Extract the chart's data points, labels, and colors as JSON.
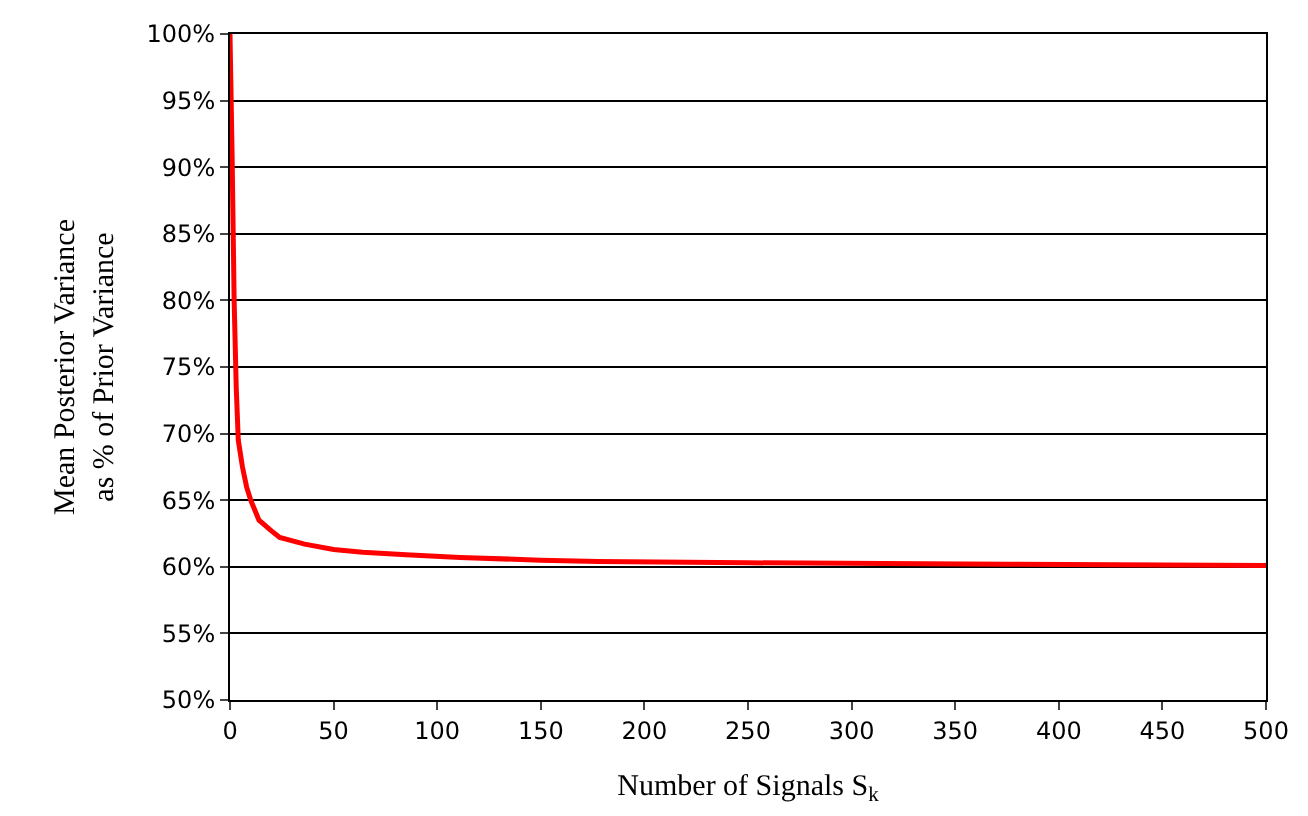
{
  "chart_data": {
    "type": "line",
    "xlabel": "Number of Signals S$_{k}$",
    "ylabel": "Mean Posterior Variance\nas % of Prior Variance",
    "x": [
      0,
      1,
      2,
      3,
      4,
      6,
      8,
      10,
      14,
      20,
      24,
      36,
      50,
      64,
      85,
      111,
      150,
      178,
      250,
      375,
      500
    ],
    "series": [
      {
        "color": "#ff0000",
        "values": [
          100,
          91,
          80,
          73.5,
          69.5,
          67.5,
          66,
          65,
          63.5,
          62.7,
          62.2,
          61.7,
          61.3,
          61.1,
          60.9,
          60.7,
          60.5,
          60.4,
          60.3,
          60.2,
          60.1
        ]
      }
    ],
    "xlim": [
      0,
      500
    ],
    "xticks": [
      0,
      50,
      100,
      150,
      200,
      250,
      300,
      350,
      400,
      450,
      500
    ],
    "ylim": [
      50,
      100
    ],
    "yticks": [
      {
        "value": 50,
        "label": "50%"
      },
      {
        "value": 55,
        "label": "55%"
      },
      {
        "value": 60,
        "label": "60%"
      },
      {
        "value": 65,
        "label": "65%"
      },
      {
        "value": 70,
        "label": "70%"
      },
      {
        "value": 75,
        "label": "75%"
      },
      {
        "value": 80,
        "label": "80%"
      },
      {
        "value": 85,
        "label": "85%"
      },
      {
        "value": 90,
        "label": "90%"
      },
      {
        "value": 95,
        "label": "95%"
      },
      {
        "value": 100,
        "label": "100%"
      }
    ],
    "grid": "y",
    "marker": "none",
    "line_style": "solid"
  }
}
